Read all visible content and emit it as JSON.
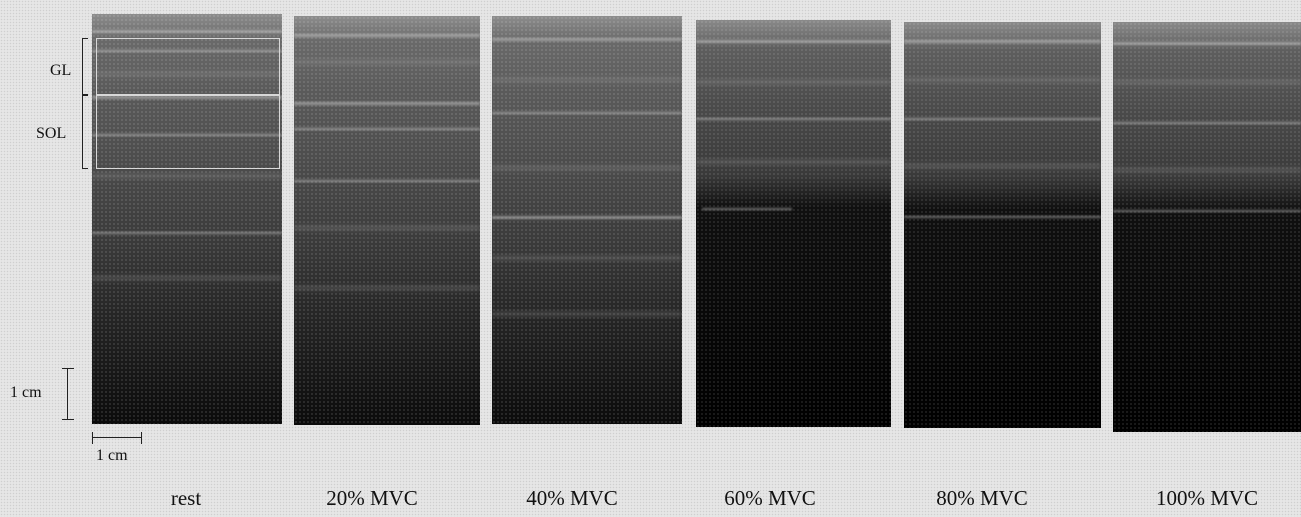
{
  "figure": {
    "muscle_labels": [
      "GL",
      "SOL"
    ],
    "scale_bars": {
      "vertical_label": "1 cm",
      "horizontal_label": "1 cm"
    },
    "conditions": [
      "rest",
      "20% MVC",
      "40% MVC",
      "60% MVC",
      "80% MVC",
      "100% MVC"
    ]
  }
}
